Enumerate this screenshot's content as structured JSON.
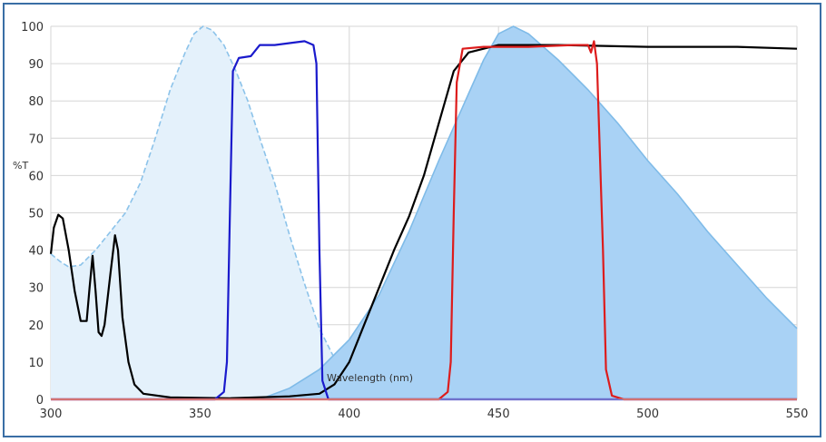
{
  "chart_data": {
    "type": "area",
    "title": "",
    "xlabel": "Wavelength (nm)",
    "ylabel": "%T",
    "xlim": [
      300,
      550
    ],
    "ylim": [
      0,
      100
    ],
    "x_ticks": [
      300,
      350,
      400,
      450,
      500,
      550
    ],
    "y_ticks": [
      0,
      10,
      20,
      30,
      40,
      50,
      60,
      70,
      80,
      90,
      100
    ],
    "grid": true,
    "legend": "none",
    "series": [
      {
        "kind": "area",
        "style": "dashed",
        "color": "#8cc3ea",
        "fill": "#e4f1fb",
        "points": [
          [
            300,
            39
          ],
          [
            303,
            37
          ],
          [
            306,
            35.5
          ],
          [
            310,
            36
          ],
          [
            315,
            40
          ],
          [
            320,
            45
          ],
          [
            325,
            50
          ],
          [
            330,
            58
          ],
          [
            335,
            70
          ],
          [
            340,
            83
          ],
          [
            345,
            93
          ],
          [
            348,
            98
          ],
          [
            351,
            100
          ],
          [
            354,
            99
          ],
          [
            358,
            95
          ],
          [
            362,
            88
          ],
          [
            366,
            80
          ],
          [
            370,
            70
          ],
          [
            375,
            58
          ],
          [
            380,
            44
          ],
          [
            385,
            31
          ],
          [
            390,
            19
          ],
          [
            395,
            11
          ],
          [
            400,
            6
          ],
          [
            405,
            4
          ],
          [
            410,
            3
          ],
          [
            415,
            2
          ],
          [
            425,
            1
          ],
          [
            440,
            0.3
          ],
          [
            460,
            0
          ]
        ]
      },
      {
        "kind": "area",
        "style": "solid",
        "color": "#7fbbe8",
        "fill": "#a9d2f5",
        "points": [
          [
            370,
            0
          ],
          [
            380,
            3
          ],
          [
            390,
            8
          ],
          [
            400,
            16
          ],
          [
            410,
            28
          ],
          [
            420,
            45
          ],
          [
            430,
            64
          ],
          [
            440,
            82
          ],
          [
            445,
            91
          ],
          [
            450,
            98
          ],
          [
            455,
            100
          ],
          [
            460,
            98
          ],
          [
            470,
            91
          ],
          [
            480,
            83
          ],
          [
            490,
            74
          ],
          [
            500,
            64
          ],
          [
            510,
            55
          ],
          [
            520,
            45
          ],
          [
            530,
            36
          ],
          [
            540,
            27
          ],
          [
            550,
            19
          ]
        ]
      },
      {
        "kind": "line",
        "color": "#000000",
        "points": [
          [
            300,
            39
          ],
          [
            301,
            46
          ],
          [
            302.5,
            49.5
          ],
          [
            304,
            48.5
          ],
          [
            306,
            40
          ],
          [
            308,
            29
          ],
          [
            310,
            21
          ],
          [
            312,
            21
          ],
          [
            313,
            30
          ],
          [
            314,
            38.5
          ],
          [
            315,
            29
          ],
          [
            316,
            18
          ],
          [
            317,
            17
          ],
          [
            318,
            20
          ],
          [
            320,
            34
          ],
          [
            321.5,
            44
          ],
          [
            322.5,
            40
          ],
          [
            324,
            22
          ],
          [
            326,
            10
          ],
          [
            328,
            4
          ],
          [
            331,
            1.5
          ],
          [
            340,
            0.5
          ],
          [
            360,
            0.3
          ],
          [
            380,
            0.8
          ],
          [
            390,
            1.5
          ],
          [
            395,
            4
          ],
          [
            400,
            10
          ],
          [
            405,
            20
          ],
          [
            410,
            30
          ],
          [
            415,
            40
          ],
          [
            420,
            49
          ],
          [
            425,
            60
          ],
          [
            430,
            74
          ],
          [
            435,
            88
          ],
          [
            440,
            93
          ],
          [
            450,
            95
          ],
          [
            470,
            95
          ],
          [
            500,
            94.5
          ],
          [
            530,
            94.5
          ],
          [
            550,
            94
          ]
        ]
      },
      {
        "kind": "line",
        "color": "#1a1acc",
        "points": [
          [
            300,
            0
          ],
          [
            355,
            0
          ],
          [
            358,
            2
          ],
          [
            359,
            10
          ],
          [
            360,
            50
          ],
          [
            361,
            88
          ],
          [
            363,
            91.5
          ],
          [
            367,
            92
          ],
          [
            370,
            95
          ],
          [
            375,
            95
          ],
          [
            380,
            95.5
          ],
          [
            385,
            96
          ],
          [
            388,
            95
          ],
          [
            389,
            90
          ],
          [
            390,
            40
          ],
          [
            391,
            5
          ],
          [
            393,
            0
          ],
          [
            550,
            0
          ]
        ]
      },
      {
        "kind": "line",
        "color": "#dd1c1c",
        "points": [
          [
            300,
            0
          ],
          [
            430,
            0
          ],
          [
            433,
            2
          ],
          [
            434,
            10
          ],
          [
            435,
            50
          ],
          [
            436,
            85
          ],
          [
            438,
            94
          ],
          [
            445,
            94.5
          ],
          [
            460,
            94.5
          ],
          [
            475,
            95
          ],
          [
            480,
            95
          ],
          [
            481,
            93
          ],
          [
            482,
            96
          ],
          [
            483,
            90
          ],
          [
            485,
            40
          ],
          [
            486,
            8
          ],
          [
            488,
            1
          ],
          [
            492,
            0
          ],
          [
            550,
            0
          ]
        ]
      }
    ]
  }
}
